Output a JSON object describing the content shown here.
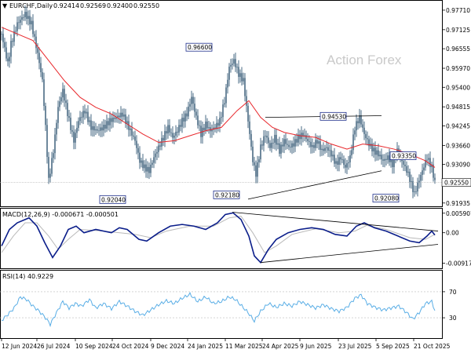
{
  "chart_data": {
    "type": "candlestick",
    "symbol": "EURCHF,Daily",
    "ohlc": {
      "open": "0.92414",
      "high": "0.92569",
      "low": "0.92400",
      "close": "0.92550"
    },
    "watermark": "Action Forex",
    "price_axis": {
      "ylim": [
        0.9186,
        0.9792
      ],
      "ticks": [
        "0.97710",
        "0.97125",
        "0.96555",
        "0.95970",
        "0.95400",
        "0.94815",
        "0.94245",
        "0.93660",
        "0.93090",
        "0.92505",
        "0.91935"
      ],
      "last_price": "0.92550"
    },
    "x_labels": [
      "12 Jun 2024",
      "26 Jul 2024",
      "10 Sep 2024",
      "24 Oct 2024",
      "9 Dec 2024",
      "24 Jan 2025",
      "11 Mar 2025",
      "24 Apr 2025",
      "9 Jun 2025",
      "23 Jul 2025",
      "5 Sep 2025",
      "21 Oct 2025"
    ],
    "price_series": [
      {
        "x": 0,
        "v": 0.97
      },
      {
        "x": 8,
        "v": 0.961
      },
      {
        "x": 12,
        "v": 0.967
      },
      {
        "x": 20,
        "v": 0.973
      },
      {
        "x": 30,
        "v": 0.976
      },
      {
        "x": 38,
        "v": 0.973
      },
      {
        "x": 46,
        "v": 0.964
      },
      {
        "x": 52,
        "v": 0.956
      },
      {
        "x": 56,
        "v": 0.942
      },
      {
        "x": 60,
        "v": 0.926
      },
      {
        "x": 66,
        "v": 0.935
      },
      {
        "x": 72,
        "v": 0.948
      },
      {
        "x": 78,
        "v": 0.953
      },
      {
        "x": 86,
        "v": 0.944
      },
      {
        "x": 92,
        "v": 0.938
      },
      {
        "x": 98,
        "v": 0.944
      },
      {
        "x": 106,
        "v": 0.947
      },
      {
        "x": 114,
        "v": 0.942
      },
      {
        "x": 122,
        "v": 0.941
      },
      {
        "x": 130,
        "v": 0.942
      },
      {
        "x": 138,
        "v": 0.944
      },
      {
        "x": 146,
        "v": 0.945
      },
      {
        "x": 154,
        "v": 0.946
      },
      {
        "x": 162,
        "v": 0.942
      },
      {
        "x": 170,
        "v": 0.938
      },
      {
        "x": 176,
        "v": 0.932
      },
      {
        "x": 182,
        "v": 0.93
      },
      {
        "x": 188,
        "v": 0.929
      },
      {
        "x": 194,
        "v": 0.933
      },
      {
        "x": 200,
        "v": 0.936
      },
      {
        "x": 206,
        "v": 0.939
      },
      {
        "x": 212,
        "v": 0.942
      },
      {
        "x": 218,
        "v": 0.939
      },
      {
        "x": 224,
        "v": 0.941
      },
      {
        "x": 230,
        "v": 0.944
      },
      {
        "x": 236,
        "v": 0.946
      },
      {
        "x": 242,
        "v": 0.951
      },
      {
        "x": 248,
        "v": 0.945
      },
      {
        "x": 254,
        "v": 0.94
      },
      {
        "x": 260,
        "v": 0.943
      },
      {
        "x": 266,
        "v": 0.941
      },
      {
        "x": 272,
        "v": 0.942
      },
      {
        "x": 278,
        "v": 0.944
      },
      {
        "x": 284,
        "v": 0.95
      },
      {
        "x": 290,
        "v": 0.96
      },
      {
        "x": 296,
        "v": 0.962
      },
      {
        "x": 302,
        "v": 0.958
      },
      {
        "x": 308,
        "v": 0.956
      },
      {
        "x": 314,
        "v": 0.944
      },
      {
        "x": 320,
        "v": 0.932
      },
      {
        "x": 324,
        "v": 0.928
      },
      {
        "x": 330,
        "v": 0.936
      },
      {
        "x": 336,
        "v": 0.94
      },
      {
        "x": 342,
        "v": 0.936
      },
      {
        "x": 348,
        "v": 0.939
      },
      {
        "x": 354,
        "v": 0.935
      },
      {
        "x": 360,
        "v": 0.938
      },
      {
        "x": 366,
        "v": 0.936
      },
      {
        "x": 372,
        "v": 0.937
      },
      {
        "x": 378,
        "v": 0.939
      },
      {
        "x": 384,
        "v": 0.94
      },
      {
        "x": 390,
        "v": 0.938
      },
      {
        "x": 396,
        "v": 0.936
      },
      {
        "x": 402,
        "v": 0.938
      },
      {
        "x": 408,
        "v": 0.935
      },
      {
        "x": 414,
        "v": 0.936
      },
      {
        "x": 420,
        "v": 0.934
      },
      {
        "x": 426,
        "v": 0.931
      },
      {
        "x": 432,
        "v": 0.933
      },
      {
        "x": 438,
        "v": 0.93
      },
      {
        "x": 444,
        "v": 0.933
      },
      {
        "x": 450,
        "v": 0.942
      },
      {
        "x": 456,
        "v": 0.945
      },
      {
        "x": 462,
        "v": 0.94
      },
      {
        "x": 468,
        "v": 0.937
      },
      {
        "x": 474,
        "v": 0.935
      },
      {
        "x": 480,
        "v": 0.934
      },
      {
        "x": 486,
        "v": 0.932
      },
      {
        "x": 492,
        "v": 0.933
      },
      {
        "x": 498,
        "v": 0.931
      },
      {
        "x": 504,
        "v": 0.935
      },
      {
        "x": 508,
        "v": 0.933
      },
      {
        "x": 514,
        "v": 0.93
      },
      {
        "x": 518,
        "v": 0.928
      },
      {
        "x": 522,
        "v": 0.925
      },
      {
        "x": 526,
        "v": 0.922
      },
      {
        "x": 530,
        "v": 0.925
      },
      {
        "x": 536,
        "v": 0.929
      },
      {
        "x": 542,
        "v": 0.933
      },
      {
        "x": 548,
        "v": 0.93
      },
      {
        "x": 552,
        "v": 0.9255
      }
    ],
    "moving_average": [
      {
        "x": 0,
        "v": 0.972
      },
      {
        "x": 20,
        "v": 0.97
      },
      {
        "x": 40,
        "v": 0.968
      },
      {
        "x": 60,
        "v": 0.962
      },
      {
        "x": 80,
        "v": 0.956
      },
      {
        "x": 100,
        "v": 0.951
      },
      {
        "x": 120,
        "v": 0.948
      },
      {
        "x": 140,
        "v": 0.946
      },
      {
        "x": 160,
        "v": 0.943
      },
      {
        "x": 180,
        "v": 0.94
      },
      {
        "x": 200,
        "v": 0.9375
      },
      {
        "x": 220,
        "v": 0.938
      },
      {
        "x": 240,
        "v": 0.9395
      },
      {
        "x": 260,
        "v": 0.941
      },
      {
        "x": 280,
        "v": 0.942
      },
      {
        "x": 300,
        "v": 0.947
      },
      {
        "x": 315,
        "v": 0.95
      },
      {
        "x": 330,
        "v": 0.945
      },
      {
        "x": 345,
        "v": 0.942
      },
      {
        "x": 360,
        "v": 0.9405
      },
      {
        "x": 380,
        "v": 0.9395
      },
      {
        "x": 400,
        "v": 0.939
      },
      {
        "x": 420,
        "v": 0.937
      },
      {
        "x": 440,
        "v": 0.9355
      },
      {
        "x": 460,
        "v": 0.937
      },
      {
        "x": 480,
        "v": 0.9365
      },
      {
        "x": 500,
        "v": 0.9355
      },
      {
        "x": 520,
        "v": 0.934
      },
      {
        "x": 540,
        "v": 0.932
      },
      {
        "x": 552,
        "v": 0.93
      }
    ],
    "price_labels": [
      {
        "text": "0.96600",
        "x": 267,
        "v": 0.966
      },
      {
        "text": "0.92040",
        "x": 157,
        "v": 0.9204
      },
      {
        "text": "0.92180",
        "x": 302,
        "v": 0.9218
      },
      {
        "text": "0.94530",
        "x": 438,
        "v": 0.9453
      },
      {
        "text": "0.93350",
        "x": 527,
        "v": 0.9335
      },
      {
        "text": "0.92080",
        "x": 505,
        "v": 0.9208
      }
    ],
    "macd": {
      "label": "MACD(12,26,9) -0.000671 -0.000501",
      "ylim": [
        -0.0105,
        0.0068
      ],
      "ticks": [
        "0.005907",
        "0.00",
        "-0.009175"
      ],
      "series": [
        {
          "x": 0,
          "v": -0.004
        },
        {
          "x": 10,
          "v": 0.001
        },
        {
          "x": 20,
          "v": 0.003
        },
        {
          "x": 35,
          "v": 0.0045
        },
        {
          "x": 45,
          "v": 0.002
        },
        {
          "x": 55,
          "v": -0.003
        },
        {
          "x": 65,
          "v": -0.0075
        },
        {
          "x": 75,
          "v": -0.004
        },
        {
          "x": 85,
          "v": 0.001
        },
        {
          "x": 95,
          "v": 0.002
        },
        {
          "x": 105,
          "v": 0.0
        },
        {
          "x": 120,
          "v": 0.001
        },
        {
          "x": 140,
          "v": 0.0
        },
        {
          "x": 150,
          "v": 0.0015
        },
        {
          "x": 160,
          "v": 0.001
        },
        {
          "x": 175,
          "v": -0.002
        },
        {
          "x": 185,
          "v": -0.0025
        },
        {
          "x": 200,
          "v": 0.0
        },
        {
          "x": 215,
          "v": 0.002
        },
        {
          "x": 230,
          "v": 0.0025
        },
        {
          "x": 245,
          "v": 0.002
        },
        {
          "x": 260,
          "v": 0.001
        },
        {
          "x": 275,
          "v": 0.003
        },
        {
          "x": 285,
          "v": 0.0055
        },
        {
          "x": 295,
          "v": 0.006
        },
        {
          "x": 305,
          "v": 0.004
        },
        {
          "x": 315,
          "v": -0.001
        },
        {
          "x": 322,
          "v": -0.007
        },
        {
          "x": 330,
          "v": -0.009
        },
        {
          "x": 340,
          "v": -0.005
        },
        {
          "x": 350,
          "v": -0.002
        },
        {
          "x": 365,
          "v": 0.0
        },
        {
          "x": 380,
          "v": 0.001
        },
        {
          "x": 395,
          "v": 0.0015
        },
        {
          "x": 410,
          "v": 0.001
        },
        {
          "x": 425,
          "v": -0.0005
        },
        {
          "x": 440,
          "v": -0.001
        },
        {
          "x": 452,
          "v": 0.002
        },
        {
          "x": 462,
          "v": 0.003
        },
        {
          "x": 475,
          "v": 0.0015
        },
        {
          "x": 490,
          "v": 0.0005
        },
        {
          "x": 505,
          "v": -0.001
        },
        {
          "x": 520,
          "v": -0.0025
        },
        {
          "x": 532,
          "v": -0.003
        },
        {
          "x": 542,
          "v": -0.001
        },
        {
          "x": 548,
          "v": 0.0005
        },
        {
          "x": 552,
          "v": -0.0007
        }
      ],
      "signal": [
        {
          "x": 0,
          "v": -0.006
        },
        {
          "x": 15,
          "v": -0.001
        },
        {
          "x": 30,
          "v": 0.003
        },
        {
          "x": 45,
          "v": 0.003
        },
        {
          "x": 60,
          "v": -0.001
        },
        {
          "x": 72,
          "v": -0.005
        },
        {
          "x": 85,
          "v": -0.002
        },
        {
          "x": 100,
          "v": 0.001
        },
        {
          "x": 130,
          "v": 0.0005
        },
        {
          "x": 170,
          "v": -0.0005
        },
        {
          "x": 190,
          "v": -0.0015
        },
        {
          "x": 210,
          "v": 0.0005
        },
        {
          "x": 240,
          "v": 0.002
        },
        {
          "x": 270,
          "v": 0.002
        },
        {
          "x": 290,
          "v": 0.0045
        },
        {
          "x": 305,
          "v": 0.005
        },
        {
          "x": 320,
          "v": 0.0
        },
        {
          "x": 335,
          "v": -0.006
        },
        {
          "x": 350,
          "v": -0.004
        },
        {
          "x": 370,
          "v": -0.0005
        },
        {
          "x": 400,
          "v": 0.0012
        },
        {
          "x": 430,
          "v": 0.0
        },
        {
          "x": 450,
          "v": 0.0005
        },
        {
          "x": 465,
          "v": 0.0022
        },
        {
          "x": 490,
          "v": 0.001
        },
        {
          "x": 520,
          "v": -0.0015
        },
        {
          "x": 540,
          "v": -0.002
        },
        {
          "x": 552,
          "v": -0.0005
        }
      ]
    },
    "rsi": {
      "label": "RSI(14) 40.9229",
      "ylim": [
        0,
        100
      ],
      "ticks": [
        "70",
        "30"
      ],
      "series": [
        {
          "x": 0,
          "v": 26
        },
        {
          "x": 8,
          "v": 35
        },
        {
          "x": 16,
          "v": 45
        },
        {
          "x": 24,
          "v": 62
        },
        {
          "x": 32,
          "v": 58
        },
        {
          "x": 40,
          "v": 48
        },
        {
          "x": 48,
          "v": 40
        },
        {
          "x": 56,
          "v": 30
        },
        {
          "x": 62,
          "v": 20
        },
        {
          "x": 70,
          "v": 38
        },
        {
          "x": 78,
          "v": 55
        },
        {
          "x": 86,
          "v": 45
        },
        {
          "x": 94,
          "v": 52
        },
        {
          "x": 102,
          "v": 48
        },
        {
          "x": 112,
          "v": 58
        },
        {
          "x": 120,
          "v": 45
        },
        {
          "x": 130,
          "v": 52
        },
        {
          "x": 140,
          "v": 44
        },
        {
          "x": 150,
          "v": 55
        },
        {
          "x": 160,
          "v": 48
        },
        {
          "x": 170,
          "v": 40
        },
        {
          "x": 180,
          "v": 34
        },
        {
          "x": 190,
          "v": 42
        },
        {
          "x": 200,
          "v": 50
        },
        {
          "x": 210,
          "v": 56
        },
        {
          "x": 220,
          "v": 52
        },
        {
          "x": 230,
          "v": 60
        },
        {
          "x": 240,
          "v": 66
        },
        {
          "x": 250,
          "v": 55
        },
        {
          "x": 260,
          "v": 62
        },
        {
          "x": 270,
          "v": 52
        },
        {
          "x": 280,
          "v": 55
        },
        {
          "x": 290,
          "v": 62
        },
        {
          "x": 298,
          "v": 58
        },
        {
          "x": 306,
          "v": 48
        },
        {
          "x": 314,
          "v": 38
        },
        {
          "x": 322,
          "v": 25
        },
        {
          "x": 330,
          "v": 40
        },
        {
          "x": 340,
          "v": 52
        },
        {
          "x": 350,
          "v": 46
        },
        {
          "x": 360,
          "v": 52
        },
        {
          "x": 370,
          "v": 48
        },
        {
          "x": 380,
          "v": 55
        },
        {
          "x": 390,
          "v": 50
        },
        {
          "x": 400,
          "v": 45
        },
        {
          "x": 410,
          "v": 50
        },
        {
          "x": 420,
          "v": 44
        },
        {
          "x": 430,
          "v": 40
        },
        {
          "x": 440,
          "v": 46
        },
        {
          "x": 450,
          "v": 60
        },
        {
          "x": 458,
          "v": 65
        },
        {
          "x": 466,
          "v": 52
        },
        {
          "x": 476,
          "v": 46
        },
        {
          "x": 486,
          "v": 42
        },
        {
          "x": 496,
          "v": 45
        },
        {
          "x": 506,
          "v": 48
        },
        {
          "x": 516,
          "v": 38
        },
        {
          "x": 524,
          "v": 28
        },
        {
          "x": 532,
          "v": 38
        },
        {
          "x": 540,
          "v": 52
        },
        {
          "x": 548,
          "v": 55
        },
        {
          "x": 552,
          "v": 41
        }
      ]
    },
    "colors": {
      "candle": "#4a6b84",
      "ma": "#e8262a",
      "macd": "#0a1d8a",
      "signal": "#b9b9b9",
      "rsi": "#5aaee6",
      "trend": "#000000"
    }
  }
}
